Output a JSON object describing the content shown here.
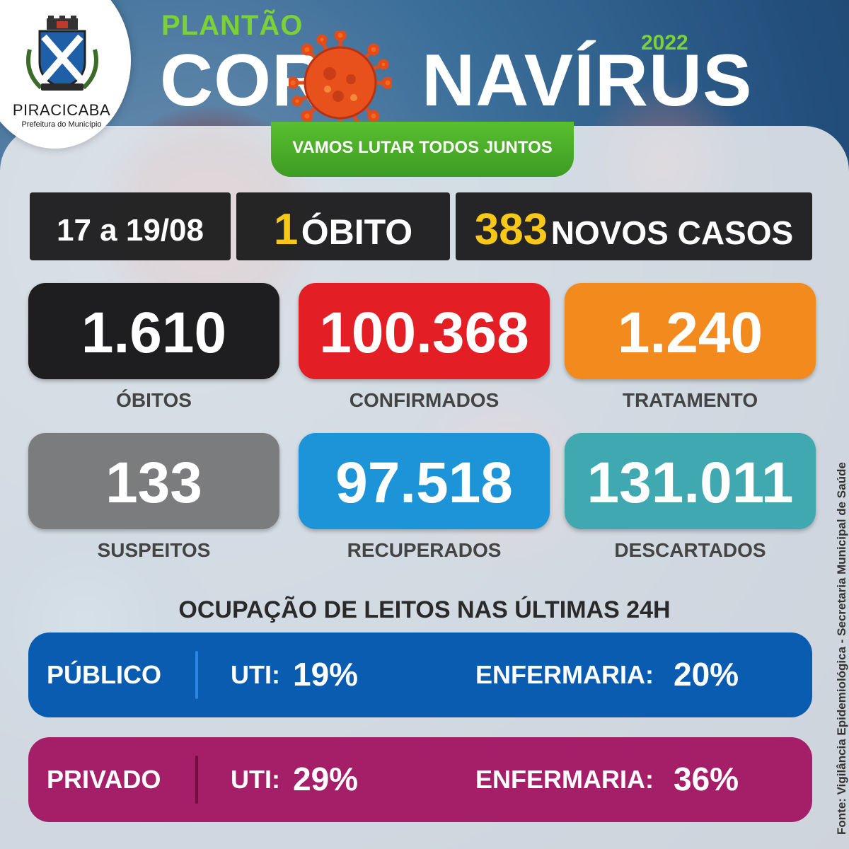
{
  "logo": {
    "name": "PIRACICABA",
    "subtitle": "Prefeitura do Município"
  },
  "header": {
    "plantao": "PLANTÃO",
    "year": "2022",
    "title_left": "COR",
    "title_right": "NAVÍRUS",
    "slogan": "VAMOS LUTAR TODOS JUNTOS"
  },
  "summary": {
    "period": "17 a 19/08",
    "deaths_count": "1",
    "deaths_label": "ÓBITO",
    "new_cases_count": "383",
    "new_cases_label": "NOVOS CASOS"
  },
  "stats": [
    {
      "value": "1.610",
      "label": "ÓBITOS",
      "color": "#1e1e20"
    },
    {
      "value": "100.368",
      "label": "CONFIRMADOS",
      "color": "#e31e24"
    },
    {
      "value": "1.240",
      "label": "TRATAMENTO",
      "color": "#f28a1d"
    },
    {
      "value": "133",
      "label": "SUSPEITOS",
      "color": "#7b7c7e"
    },
    {
      "value": "97.518",
      "label": "RECUPERADOS",
      "color": "#1d94d8"
    },
    {
      "value": "131.011",
      "label": "DESCARTADOS",
      "color": "#3fa8b0"
    }
  ],
  "occupancy": {
    "title": "OCUPAÇÃO DE LEITOS NAS ÚLTIMAS 24H",
    "rows": [
      {
        "sector": "PÚBLICO",
        "uti_label": "UTI:",
        "uti_value": "19%",
        "ward_label": "ENFERMARIA:",
        "ward_value": "20%",
        "color": "#0a5cb0"
      },
      {
        "sector": "PRIVADO",
        "uti_label": "UTI:",
        "uti_value": "29%",
        "ward_label": "ENFERMARIA:",
        "ward_value": "36%",
        "color": "#a51e68"
      }
    ]
  },
  "source": "Fonte: Vigilância Epidemiológica - Secretaria Municipal de Saúde"
}
